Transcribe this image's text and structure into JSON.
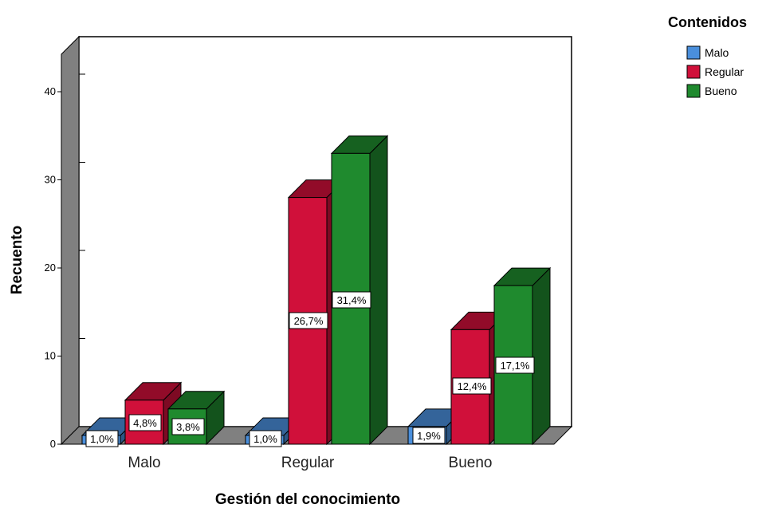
{
  "chart_data": {
    "type": "bar",
    "title": "",
    "xlabel": "Gestión del conocimiento",
    "ylabel": "Recuento",
    "ylim": [
      0,
      40
    ],
    "yticks": [
      "0",
      "10",
      "20",
      "30",
      "40"
    ],
    "categories": [
      "Malo",
      "Regular",
      "Bueno"
    ],
    "legend_title": "Contenidos",
    "legend_position": "top-right",
    "grid": false,
    "three_d": true,
    "series": [
      {
        "name": "Malo",
        "color": "#4a8fdc",
        "values": [
          1,
          1,
          2
        ],
        "labels": [
          "1,0%",
          "1,0%",
          "1,9%"
        ]
      },
      {
        "name": "Regular",
        "color": "#d0103a",
        "values": [
          5,
          28,
          13
        ],
        "labels": [
          "4,8%",
          "26,7%",
          "12,4%"
        ]
      },
      {
        "name": "Bueno",
        "color": "#1f8a2e",
        "values": [
          4,
          33,
          18
        ],
        "labels": [
          "3,8%",
          "31,4%",
          "17,1%"
        ]
      }
    ]
  }
}
